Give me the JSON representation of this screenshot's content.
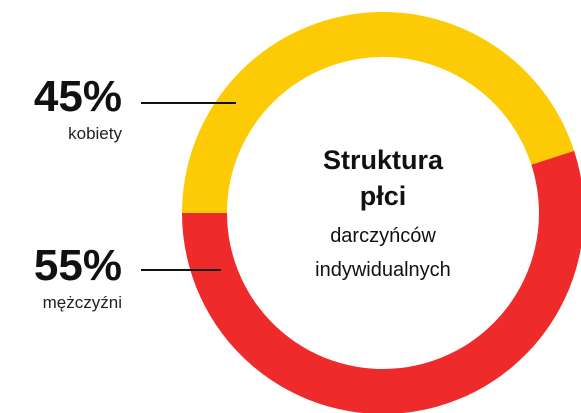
{
  "chart_data": {
    "type": "pie",
    "title": "Struktura płci",
    "subtitle": "darczyńców indywidualnych",
    "categories": [
      "kobiety",
      "mężczyźni"
    ],
    "values": [
      45,
      55
    ],
    "value_labels": [
      "45%",
      "55%"
    ],
    "colors": [
      "#fccb06",
      "#ee2a2a"
    ]
  }
}
